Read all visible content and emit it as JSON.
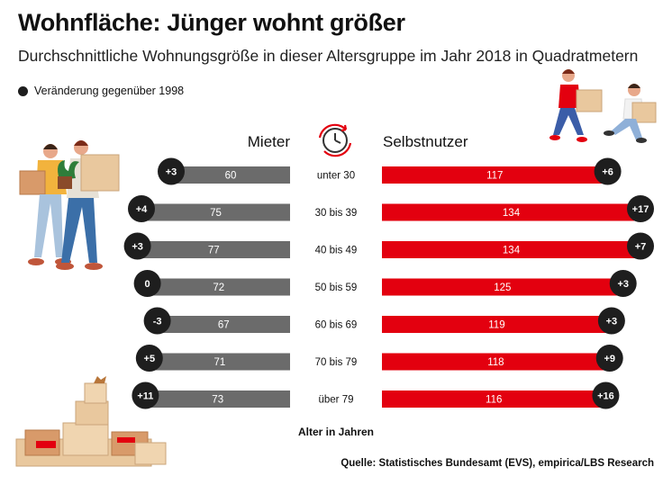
{
  "header": {
    "title": "Wohnfläche: Jünger wohnt größer",
    "subtitle": "Durchschnittliche Wohnungsgröße in dieser Altersgruppe im Jahr 2018 in Quadratmetern",
    "legend": "Veränderung gegenüber 1998"
  },
  "footer": {
    "axis_label": "Alter in Jahren",
    "source": "Quelle: Statistisches Bundesamt (EVS), empirica/LBS Research"
  },
  "colors": {
    "mieter": "#6b6b6b",
    "selbstnutzer": "#e3000f",
    "badge": "#1e1e1e"
  },
  "icons": [
    "clock-icon",
    "couple-moving-illustration",
    "kids-carrying-boxes-illustration",
    "box-pile-illustration"
  ],
  "chart_data": {
    "type": "bar",
    "title": "Wohnfläche: Jünger wohnt größer",
    "subtitle": "Durchschnittliche Wohnungsgröße in dieser Altersgruppe im Jahr 2018 in Quadratmetern",
    "xlabel": "Alter in Jahren",
    "categories": [
      "unter 30",
      "30 bis 39",
      "40 bis 49",
      "50 bis 59",
      "60 bis 69",
      "70 bis 79",
      "über 79"
    ],
    "series": [
      {
        "name": "Mieter",
        "values": [
          60,
          75,
          77,
          72,
          67,
          71,
          73
        ],
        "change": [
          "+3",
          "+4",
          "+3",
          "0",
          "-3",
          "+5",
          "+11"
        ]
      },
      {
        "name": "Selbstnutzer",
        "values": [
          117,
          134,
          134,
          125,
          119,
          118,
          116
        ],
        "change": [
          "+6",
          "+17",
          "+7",
          "+3",
          "+3",
          "+9",
          "+16"
        ]
      }
    ],
    "legend": "Veränderung gegenüber 1998"
  }
}
